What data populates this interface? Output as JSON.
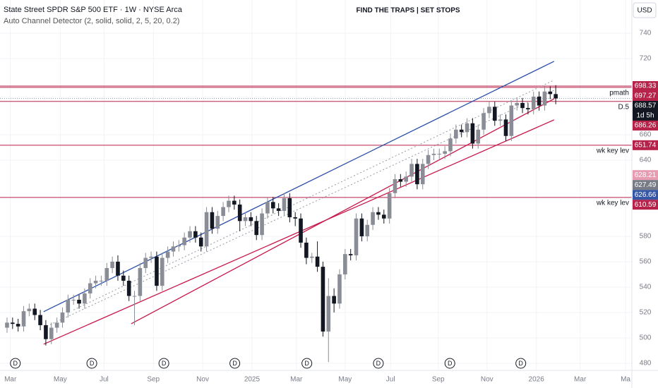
{
  "chart_data": {
    "type": "candlestick",
    "title": "FIND THE TRAPS | SET STOPS",
    "symbol": "State Street SPDR S&P 500 ETF · 1W · NYSE Arca",
    "indicator": "Auto Channel Detector (2, solid, solid, 2, 5, 20, 0.2)",
    "currency": "USD",
    "up_color": "#8a8d96",
    "down_color": "#131722",
    "grid": true,
    "xlim": [
      -1.27,
      112.74
    ],
    "ylim": [
      474.4,
      766.1
    ],
    "yticks": [
      480,
      500,
      520,
      540,
      560,
      580,
      640,
      660,
      720,
      740
    ],
    "xticks": [
      {
        "value": 0.6,
        "label": "Mar"
      },
      {
        "value": 9.6,
        "label": "May"
      },
      {
        "value": 17.5,
        "label": "Jul"
      },
      {
        "value": 26.4,
        "label": "Sep"
      },
      {
        "value": 35.3,
        "label": "Nov"
      },
      {
        "value": 44.2,
        "label": "2025"
      },
      {
        "value": 52.2,
        "label": "Mar"
      },
      {
        "value": 61,
        "label": "May"
      },
      {
        "value": 69.2,
        "label": "Jul"
      },
      {
        "value": 77.8,
        "label": "Sep"
      },
      {
        "value": 86.6,
        "label": "Nov"
      },
      {
        "value": 95.5,
        "label": "2026"
      },
      {
        "value": 103.4,
        "label": "Mar"
      },
      {
        "value": 111.6,
        "label": "Ma"
      }
    ],
    "open": [
      508,
      512,
      511,
      509,
      521,
      523,
      518,
      510,
      499,
      508,
      512,
      520,
      530,
      530,
      527,
      535,
      543,
      545,
      545,
      555,
      560,
      549,
      545,
      533,
      533,
      555,
      563,
      564,
      541,
      563,
      568,
      572,
      573,
      579,
      584,
      579,
      572,
      599,
      586,
      596,
      603,
      608,
      605,
      592,
      595,
      592,
      581,
      598,
      607,
      602,
      600,
      610,
      595,
      594,
      575,
      563,
      564,
      556,
      505,
      533,
      527,
      550,
      566,
      565,
      594,
      580,
      589,
      599,
      597,
      594,
      614,
      625,
      623,
      627,
      637,
      621,
      637,
      644,
      645,
      645,
      647,
      657,
      664,
      662,
      669,
      653,
      664,
      677,
      682,
      671,
      672,
      659,
      683,
      685,
      681,
      680,
      690,
      683,
      694,
      692
    ],
    "high": [
      516,
      516,
      515,
      525,
      527,
      527,
      522,
      514,
      512,
      516,
      524,
      534,
      534,
      534,
      539,
      547,
      549,
      549,
      559,
      564,
      565,
      553,
      549,
      537,
      559,
      567,
      568,
      568,
      567,
      572,
      576,
      577,
      583,
      588,
      588,
      583,
      603,
      603,
      600,
      607,
      612,
      612,
      609,
      599,
      599,
      596,
      602,
      611,
      611,
      606,
      614,
      614,
      599,
      598,
      579,
      567,
      576,
      560,
      547,
      539,
      554,
      570,
      570,
      598,
      598,
      593,
      603,
      603,
      601,
      618,
      629,
      629,
      631,
      641,
      641,
      641,
      648,
      649,
      649,
      651,
      661,
      668,
      668,
      673,
      673,
      668,
      681,
      686,
      686,
      676,
      676,
      687,
      689,
      689,
      685,
      694,
      694,
      698,
      698,
      699
    ],
    "low": [
      504,
      507,
      505,
      505,
      517,
      514,
      506,
      494,
      495,
      504,
      508,
      516,
      526,
      523,
      523,
      531,
      539,
      541,
      541,
      551,
      545,
      541,
      529,
      510,
      529,
      551,
      559,
      537,
      537,
      559,
      564,
      568,
      569,
      575,
      575,
      568,
      568,
      582,
      582,
      592,
      599,
      601,
      584,
      588,
      588,
      577,
      577,
      594,
      598,
      596,
      596,
      591,
      588,
      571,
      558,
      559,
      552,
      501,
      481,
      520,
      523,
      546,
      561,
      561,
      576,
      576,
      585,
      593,
      590,
      590,
      610,
      619,
      619,
      623,
      617,
      617,
      633,
      640,
      641,
      641,
      643,
      653,
      658,
      658,
      649,
      649,
      660,
      673,
      667,
      667,
      655,
      655,
      679,
      677,
      676,
      676,
      679,
      679,
      688,
      684
    ],
    "close": [
      512,
      511,
      509,
      521,
      523,
      518,
      510,
      499,
      508,
      512,
      520,
      530,
      530,
      527,
      535,
      543,
      545,
      545,
      555,
      560,
      549,
      545,
      533,
      533,
      555,
      563,
      564,
      541,
      563,
      568,
      572,
      573,
      579,
      584,
      579,
      572,
      599,
      586,
      596,
      603,
      608,
      605,
      592,
      595,
      592,
      581,
      598,
      607,
      602,
      600,
      610,
      595,
      594,
      575,
      563,
      564,
      556,
      505,
      533,
      527,
      550,
      566,
      565,
      594,
      580,
      589,
      599,
      597,
      594,
      614,
      625,
      623,
      627,
      637,
      621,
      637,
      644,
      645,
      645,
      647,
      657,
      664,
      662,
      669,
      653,
      664,
      677,
      682,
      671,
      672,
      659,
      683,
      685,
      681,
      680,
      690,
      683,
      694,
      692,
      688.57
    ],
    "trend_lines": [
      {
        "color": "#2a4fa8",
        "dash": false,
        "x": [
          6.6,
          98.7
        ],
        "y": [
          520.6,
          717.8
        ]
      },
      {
        "color": "#c8194b",
        "dash": false,
        "x": [
          6.6,
          98.7
        ],
        "y": [
          495,
          671.7
        ]
      },
      {
        "color": "#c8194b",
        "dash": false,
        "x": [
          22.4,
          98.7
        ],
        "y": [
          511.1,
          688.3
        ]
      },
      {
        "color": "#9598a1",
        "dash": true,
        "x": [
          6.6,
          98.7
        ],
        "y": [
          508,
          695
        ]
      },
      {
        "color": "#9598a1",
        "dash": true,
        "x": [
          12,
          98.7
        ],
        "y": [
          522,
          703
        ]
      }
    ],
    "levels": [
      {
        "value": 698.33,
        "color": "#b7224a"
      },
      {
        "value": 697.27,
        "color": "#b7224a",
        "note": "pmath"
      },
      {
        "value": 686.26,
        "color": "#b7224a",
        "note": "D.5"
      },
      {
        "value": 651.74,
        "color": "#b7224a",
        "note": "wk key lev"
      },
      {
        "value": 610.59,
        "color": "#b7224a",
        "note": "wk key lev"
      }
    ],
    "last_price": {
      "value": 688.57,
      "countdown": "1d 5h",
      "color": "#131722"
    },
    "axis_markers": [
      {
        "value": 628.21,
        "color": "#e79cb2"
      },
      {
        "value": 627.49,
        "color": "#787b86"
      },
      {
        "value": 626.66,
        "color": "#3656a6"
      }
    ],
    "dividends": {
      "label": "D",
      "x": [
        1.5,
        15.3,
        28.3,
        41.1,
        54.1,
        67,
        79.9,
        92.7
      ]
    }
  }
}
